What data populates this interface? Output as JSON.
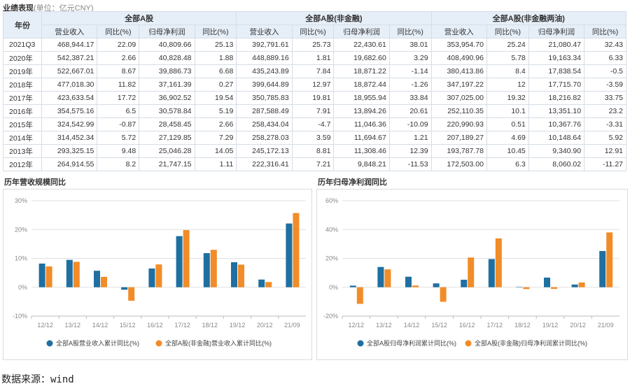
{
  "header": {
    "title": "业绩表现",
    "unit": "(单位：亿元CNY)"
  },
  "table": {
    "year_header": "年份",
    "groups": [
      "全部A股",
      "全部A股(非金融)",
      "全部A股(非金融两油)"
    ],
    "subheaders": [
      "营业收入",
      "同比(%)",
      "归母净利润",
      "同比(%)"
    ],
    "rows": [
      [
        "2021Q3",
        "468,944.17",
        "22.09",
        "40,809.66",
        "25.13",
        "392,791.61",
        "25.73",
        "22,430.61",
        "38.01",
        "353,954.70",
        "25.24",
        "21,080.47",
        "32.43"
      ],
      [
        "2020年",
        "542,387.21",
        "2.66",
        "40,828.48",
        "1.88",
        "448,889.16",
        "1.81",
        "19,682.60",
        "3.29",
        "408,490.96",
        "5.78",
        "19,163.34",
        "6.33"
      ],
      [
        "2019年",
        "522,667.01",
        "8.67",
        "39,886.73",
        "6.68",
        "435,243.89",
        "7.84",
        "18,871.22",
        "-1.14",
        "380,413.86",
        "8.4",
        "17,838.54",
        "-0.5"
      ],
      [
        "2018年",
        "477,018.30",
        "11.82",
        "37,161.39",
        "0.27",
        "399,644.89",
        "12.97",
        "18,872.44",
        "-1.26",
        "347,197.22",
        "12",
        "17,715.70",
        "-3.59"
      ],
      [
        "2017年",
        "423,633.54",
        "17.72",
        "36,902.52",
        "19.54",
        "350,785.83",
        "19.81",
        "18,955.94",
        "33.84",
        "307,025.00",
        "19.32",
        "18,216.82",
        "33.75"
      ],
      [
        "2016年",
        "354,575.16",
        "6.5",
        "30,578.84",
        "5.19",
        "287,588.49",
        "7.91",
        "13,894.26",
        "20.61",
        "252,110.35",
        "10.1",
        "13,351.10",
        "23.2"
      ],
      [
        "2015年",
        "324,542.99",
        "-0.87",
        "28,458.45",
        "2.66",
        "258,434.04",
        "-4.7",
        "11,046.36",
        "-10.09",
        "220,990.93",
        "0.51",
        "10,367.76",
        "-3.31"
      ],
      [
        "2014年",
        "314,452.34",
        "5.72",
        "27,129.85",
        "7.29",
        "258,278.03",
        "3.59",
        "11,694.67",
        "1.21",
        "207,189.27",
        "4.69",
        "10,148.64",
        "5.92"
      ],
      [
        "2013年",
        "293,325.15",
        "9.48",
        "25,046.28",
        "14.05",
        "245,172.13",
        "8.81",
        "11,308.46",
        "12.39",
        "193,787.78",
        "10.45",
        "9,340.90",
        "12.91"
      ],
      [
        "2012年",
        "264,914.55",
        "8.2",
        "21,747.15",
        "1.11",
        "222,316.41",
        "7.21",
        "9,848.21",
        "-11.53",
        "172,503.00",
        "6.3",
        "8,060.02",
        "-11.27"
      ]
    ]
  },
  "colors": {
    "series1": "#1f6fa1",
    "series2": "#f28c28",
    "grid": "#e0e0e0",
    "axis_text": "#888888"
  },
  "chart_data": [
    {
      "type": "bar",
      "title": "历年营收规模同比",
      "categories": [
        "12/12",
        "13/12",
        "14/12",
        "15/12",
        "16/12",
        "17/12",
        "18/12",
        "19/12",
        "20/12",
        "21/09"
      ],
      "yticks": [
        "-10%",
        "0%",
        "10%",
        "20%",
        "30%"
      ],
      "ylim": [
        -10,
        30
      ],
      "grid": true,
      "legend_position": "bottom",
      "series": [
        {
          "name": "全部A股营业收入累计同比(%)",
          "values": [
            8.2,
            9.48,
            5.72,
            -0.87,
            6.5,
            17.72,
            11.82,
            8.67,
            2.66,
            22.09
          ]
        },
        {
          "name": "全部A股(非金融)营业收入累计同比(%)",
          "values": [
            7.21,
            8.81,
            3.59,
            -4.7,
            7.91,
            19.81,
            12.97,
            7.84,
            1.81,
            25.73
          ]
        }
      ]
    },
    {
      "type": "bar",
      "title": "历年归母净利润同比",
      "categories": [
        "12/12",
        "13/12",
        "14/12",
        "15/12",
        "16/12",
        "17/12",
        "18/12",
        "19/12",
        "20/12",
        "21/09"
      ],
      "yticks": [
        "-20%",
        "0%",
        "20%",
        "40%",
        "60%"
      ],
      "ylim": [
        -20,
        60
      ],
      "grid": true,
      "legend_position": "bottom",
      "series": [
        {
          "name": "全部A股归母净利润累计同比(%)",
          "values": [
            1.11,
            14.05,
            7.29,
            2.66,
            5.19,
            19.54,
            0.27,
            6.68,
            1.88,
            25.13
          ]
        },
        {
          "name": "全部A股(非金融)归母净利润累计同比(%)",
          "values": [
            -11.53,
            12.39,
            1.21,
            -10.09,
            20.61,
            33.84,
            -1.26,
            -1.14,
            3.29,
            38.01
          ]
        }
      ]
    }
  ],
  "source": "数据来源：wind"
}
